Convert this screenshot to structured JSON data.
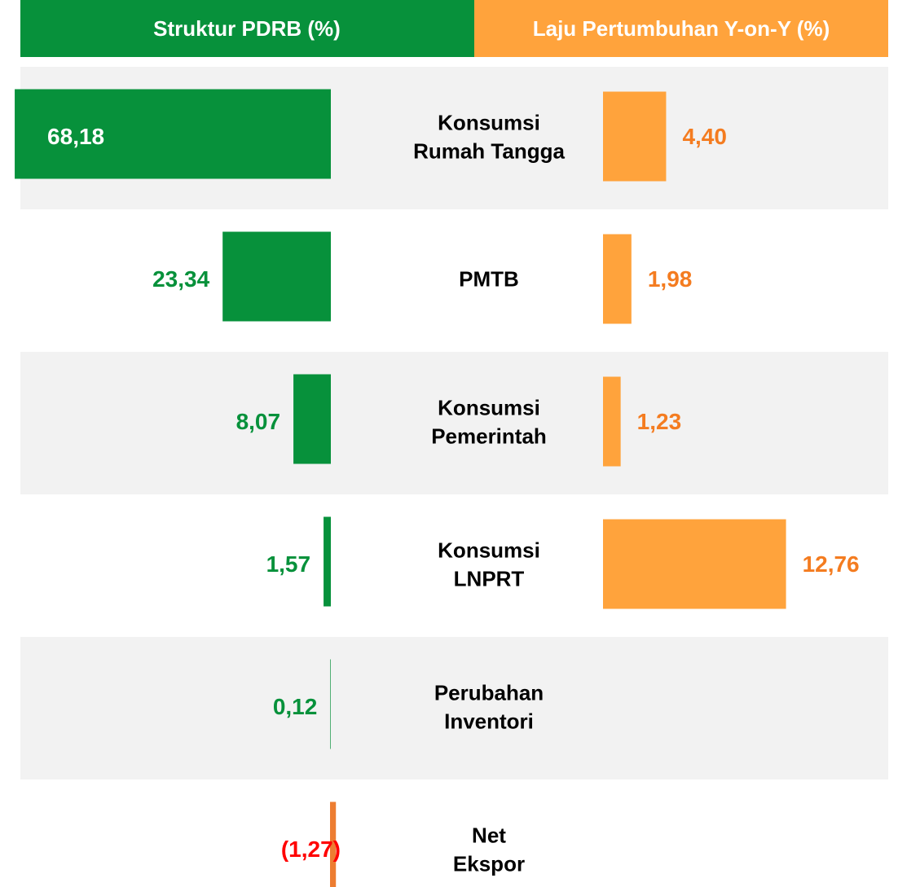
{
  "chart_data": {
    "type": "bar",
    "orientation": "horizontal",
    "categories": [
      "Konsumsi Rumah Tangga",
      "PMTB",
      "Konsumsi Pemerintah",
      "Konsumsi LNPRT",
      "Perubahan Inventori",
      "Net Ekspor"
    ],
    "series": [
      {
        "name": "Struktur PDRB (%)",
        "color": "#07913b",
        "negative_color": "#ed7d31",
        "negative_label_color": "#ff0000",
        "values": [
          68.18,
          23.34,
          8.07,
          1.57,
          0.12,
          -1.27
        ],
        "value_labels": [
          "68,18",
          "23,34",
          "8,07",
          "1,57",
          "0,12",
          "(1,27)"
        ]
      },
      {
        "name": "Laju Pertumbuhan Y-on-Y (%)",
        "color": "#ffa33c",
        "label_color": "#f47c20",
        "values": [
          4.4,
          1.98,
          1.23,
          12.76,
          null,
          null
        ],
        "value_labels": [
          "4,40",
          "1,98",
          "1,23",
          "12,76",
          null,
          null
        ]
      }
    ]
  }
}
